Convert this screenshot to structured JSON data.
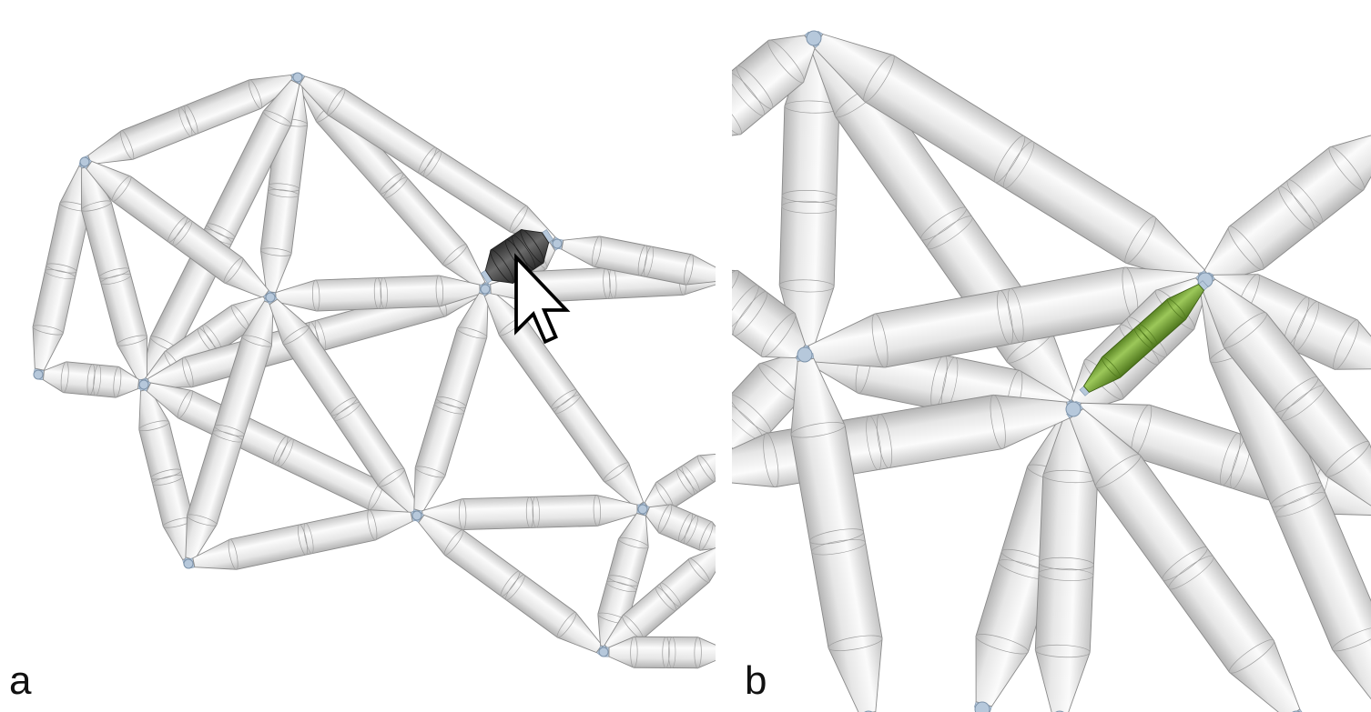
{
  "panels": [
    {
      "id": "a",
      "label": "a"
    },
    {
      "id": "b",
      "label": "b"
    }
  ],
  "colors": {
    "strut_fill": "#ececec",
    "strut_edge": "#8a8a8a",
    "hub": "#b6c8db",
    "hub_edge": "#7d93aa",
    "highlight_dark": "#4b4b4b",
    "highlight_green": "#7aa63a"
  },
  "icons": [
    "mouse-cursor-icon"
  ]
}
